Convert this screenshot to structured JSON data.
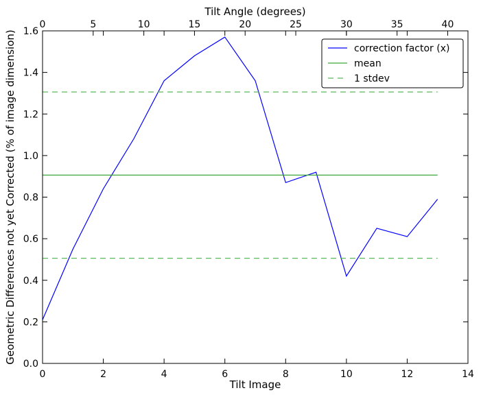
{
  "chart_data": {
    "type": "line",
    "title": "",
    "xlabel": "Tilt Image",
    "ylabel": "Geometric Differences not yet Corrected (% of image dimension)",
    "x2label": "Tilt Angle (degrees)",
    "xlim": [
      0,
      14
    ],
    "ylim": [
      0,
      1.6
    ],
    "x2lim": [
      0,
      42
    ],
    "xticks": [
      "0",
      "2",
      "4",
      "6",
      "8",
      "10",
      "12",
      "14"
    ],
    "x2ticks": [
      "0",
      "5",
      "10",
      "15",
      "20",
      "25",
      "30",
      "35",
      "40"
    ],
    "yticks": [
      "0.0",
      "0.2",
      "0.4",
      "0.6",
      "0.8",
      "1.0",
      "1.2",
      "1.4",
      "1.6"
    ],
    "grid": false,
    "legend_position": "top-right",
    "series": [
      {
        "name": "correction factor (x)",
        "style": "solid",
        "color": "#0000ff",
        "x": [
          0,
          1,
          2,
          3,
          4,
          5,
          6,
          7,
          8,
          9,
          10,
          11,
          12,
          13
        ],
        "values": [
          0.21,
          0.55,
          0.84,
          1.08,
          1.36,
          1.48,
          1.57,
          1.36,
          0.87,
          0.92,
          0.42,
          0.65,
          0.61,
          0.79
        ]
      },
      {
        "name": "mean",
        "style": "solid",
        "color": "#3aa63a",
        "x": [
          0,
          13
        ],
        "values": [
          0.906,
          0.906
        ]
      },
      {
        "name": "1 stdev",
        "style": "dashed",
        "color": "#5cb85c",
        "x": [
          0,
          13
        ],
        "values": [
          1.306,
          1.306
        ],
        "lower_values": [
          0.506,
          0.506
        ]
      }
    ]
  }
}
